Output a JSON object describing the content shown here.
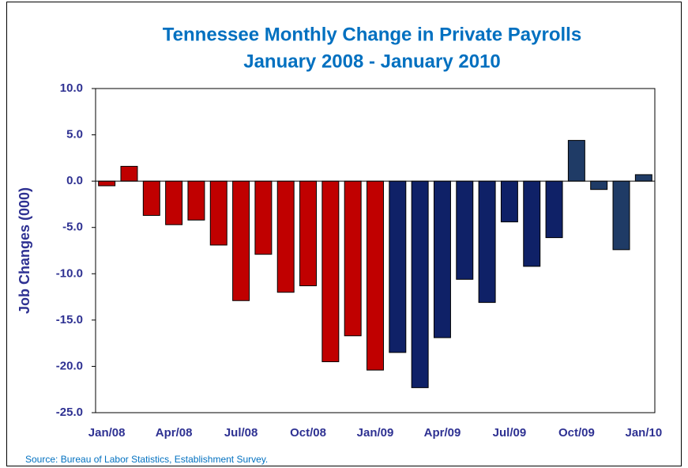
{
  "chart_data": {
    "type": "bar",
    "title": "Tennessee Monthly Change in Private Payrolls",
    "subtitle": "January 2008 - January 2010",
    "y_label": "Job Changes (000)",
    "source": "Source: Bureau of Labor Statistics, Establishment Survey.",
    "categories": [
      "Jan/08",
      null,
      null,
      "Apr/08",
      null,
      null,
      "Jul/08",
      null,
      null,
      "Oct/08",
      null,
      null,
      "Jan/09",
      null,
      null,
      "Apr/09",
      null,
      null,
      "Jul/09",
      null,
      null,
      "Oct/09",
      null,
      null,
      "Jan/10"
    ],
    "values": [
      -0.5,
      1.6,
      -3.7,
      -4.7,
      -4.2,
      -6.9,
      -12.9,
      -7.9,
      -12.0,
      -11.3,
      -19.5,
      -16.7,
      -20.4,
      -18.5,
      -22.3,
      -16.9,
      -10.6,
      -13.1,
      -4.4,
      -9.2,
      -6.1,
      4.4,
      -0.9,
      -7.4,
      0.7
    ],
    "colors": [
      "#c00000",
      "#c00000",
      "#c00000",
      "#c00000",
      "#c00000",
      "#c00000",
      "#c00000",
      "#c00000",
      "#c00000",
      "#c00000",
      "#c00000",
      "#c00000",
      "#c00000",
      "#0f2167",
      "#0f2167",
      "#0f2167",
      "#0f2167",
      "#0f2167",
      "#0f2167",
      "#0f2167",
      "#0f2167",
      "#1f3b66",
      "#1f3b66",
      "#1f3b66",
      "#1f3b66"
    ],
    "ylim": [
      -25,
      10
    ],
    "yticks": [
      {
        "value": -25,
        "label": "-25.0"
      },
      {
        "value": -20,
        "label": "-20.0"
      },
      {
        "value": -15,
        "label": "-15.0"
      },
      {
        "value": -10,
        "label": "-10.0"
      },
      {
        "value": -5,
        "label": "-5.0"
      },
      {
        "value": 0,
        "label": "0.0"
      },
      {
        "value": 5,
        "label": "5.0"
      },
      {
        "value": 10,
        "label": "10.0"
      }
    ],
    "grid": false
  }
}
